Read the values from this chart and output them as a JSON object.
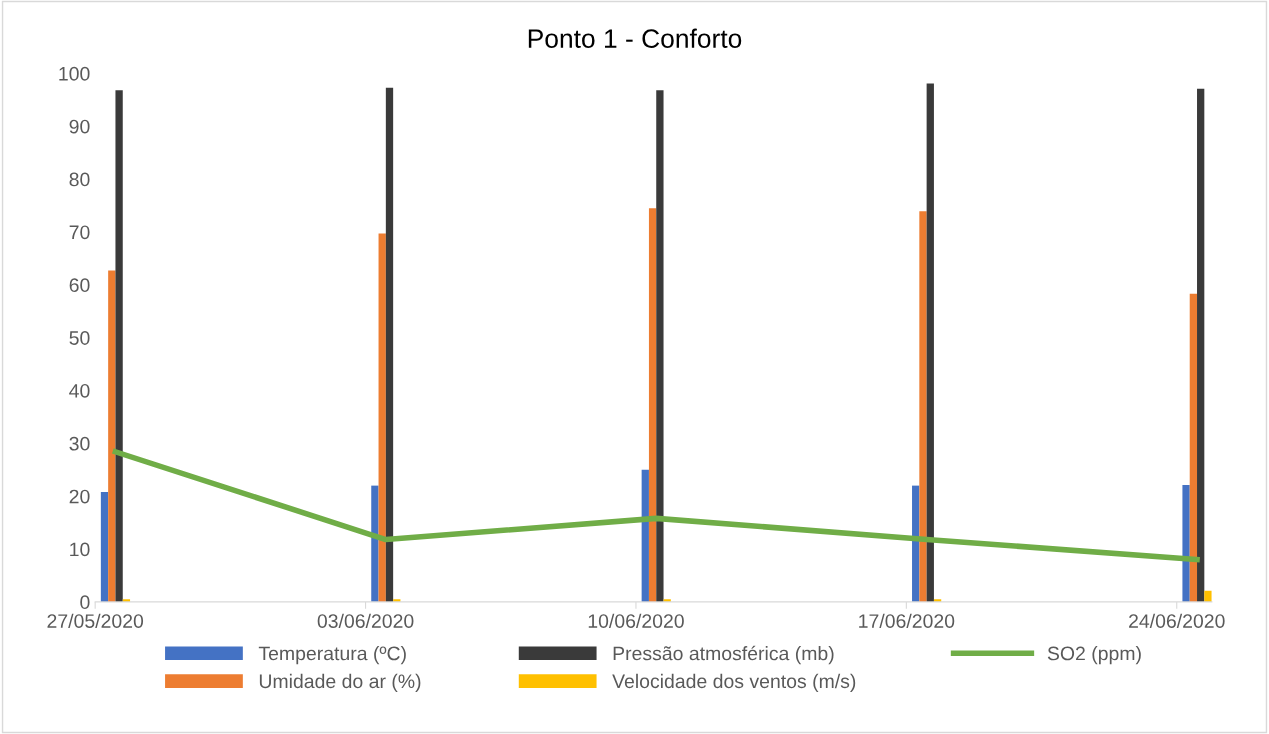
{
  "chart_data": {
    "type": "bar",
    "title": "Ponto 1 - Conforto",
    "categories": [
      "27/05/2020",
      "03/06/2020",
      "10/06/2020",
      "17/06/2020",
      "24/06/2020"
    ],
    "series": [
      {
        "name": "Temperatura (ºC)",
        "color": "#4472c4",
        "values": [
          20.8,
          22,
          25,
          22,
          22.1
        ]
      },
      {
        "name": "Umidade do ar (%)",
        "color": "#ed7d31",
        "values": [
          62.7,
          69.7,
          74.5,
          73.9,
          58.3
        ]
      },
      {
        "name": "Pressão atmosférica (mb)",
        "color": "#3a3a3a",
        "values": [
          96.8,
          97.3,
          96.8,
          98.1,
          97.1
        ]
      },
      {
        "name": "Velocidade dos ventos (m/s)",
        "color": "#ffc000",
        "values": [
          0.5,
          0.5,
          0.5,
          0.5,
          2.1
        ]
      },
      {
        "name": "SO2 (ppm)",
        "color": "#70ad47",
        "type": "line",
        "values": [
          28.4,
          11.8,
          15.8,
          11.8,
          8.0
        ]
      }
    ],
    "ylim": [
      0,
      100
    ],
    "yticks": [
      0,
      10,
      20,
      30,
      40,
      50,
      60,
      70,
      80,
      90,
      100
    ],
    "grid": false,
    "legend": "bottom",
    "marker": "none",
    "line_style": "solid"
  }
}
